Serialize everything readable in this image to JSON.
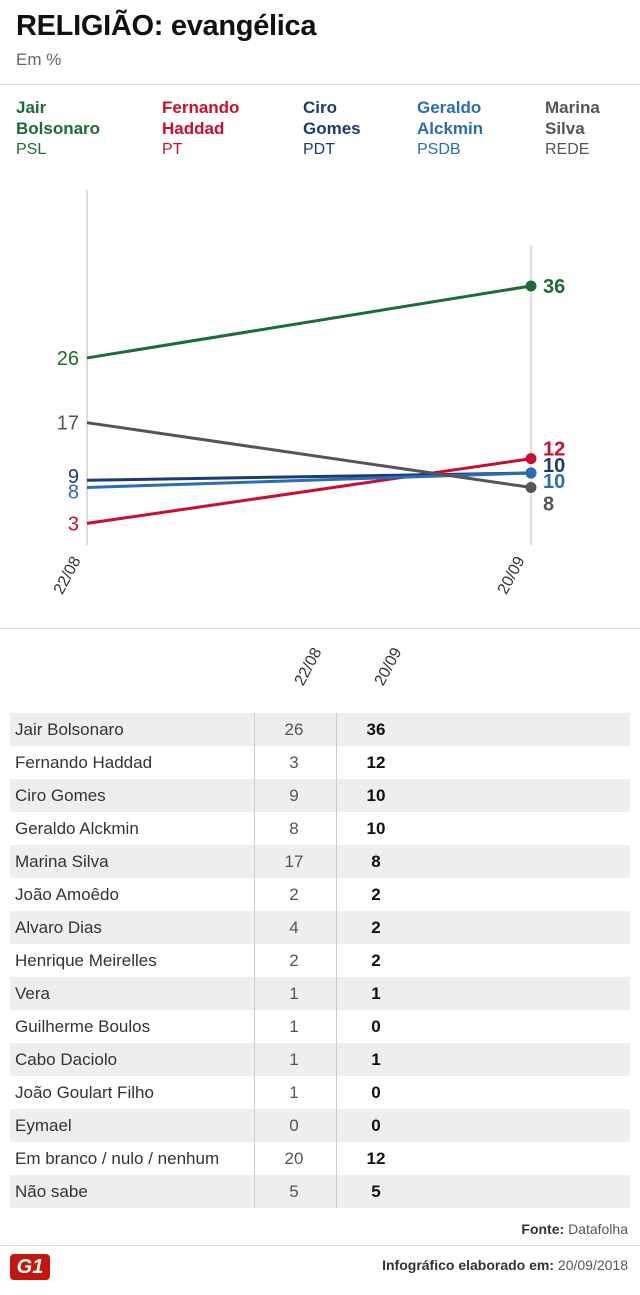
{
  "header": {
    "title": "RELIGIÃO: evangélica",
    "subtitle": "Em %"
  },
  "legend": [
    {
      "name": "Jair Bolsonaro",
      "line1": "Jair",
      "line2": "Bolsonaro",
      "party": "PSL",
      "color": "#1e6b35"
    },
    {
      "name": "Fernando Haddad",
      "line1": "Fernando",
      "line2": "Haddad",
      "party": "PT",
      "color": "#c8102e"
    },
    {
      "name": "Ciro Gomes",
      "line1": "Ciro",
      "line2": "Gomes",
      "party": "PDT",
      "color": "#1f3a6e"
    },
    {
      "name": "Geraldo Alckmin",
      "line1": "Geraldo",
      "line2": "Alckmin",
      "party": "PSDB",
      "color": "#2a6db5"
    },
    {
      "name": "Marina Silva",
      "line1": "Marina",
      "line2": "Silva",
      "party": "REDE",
      "color": "#555555"
    }
  ],
  "chart_data": {
    "type": "line",
    "categories": [
      "22/08",
      "20/09"
    ],
    "series": [
      {
        "name": "Jair Bolsonaro",
        "values": [
          26,
          36
        ],
        "color": "#1e6b35"
      },
      {
        "name": "Fernando Haddad",
        "values": [
          3,
          12
        ],
        "color": "#c8102e"
      },
      {
        "name": "Ciro Gomes",
        "values": [
          9,
          10
        ],
        "color": "#1f3a6e"
      },
      {
        "name": "Geraldo Alckmin",
        "values": [
          8,
          10
        ],
        "color": "#2a6db5"
      },
      {
        "name": "Marina Silva",
        "values": [
          17,
          8
        ],
        "color": "#555555"
      }
    ],
    "ylim": [
      0,
      40
    ]
  },
  "table": {
    "columns": [
      "22/08",
      "20/09"
    ],
    "rows": [
      {
        "name": "Jair Bolsonaro",
        "v1": "26",
        "v2": "36"
      },
      {
        "name": "Fernando Haddad",
        "v1": "3",
        "v2": "12"
      },
      {
        "name": "Ciro Gomes",
        "v1": "9",
        "v2": "10"
      },
      {
        "name": "Geraldo Alckmin",
        "v1": "8",
        "v2": "10"
      },
      {
        "name": "Marina Silva",
        "v1": "17",
        "v2": "8"
      },
      {
        "name": "João Amoêdo",
        "v1": "2",
        "v2": "2"
      },
      {
        "name": "Alvaro Dias",
        "v1": "4",
        "v2": "2"
      },
      {
        "name": "Henrique Meirelles",
        "v1": "2",
        "v2": "2"
      },
      {
        "name": "Vera",
        "v1": "1",
        "v2": "1"
      },
      {
        "name": "Guilherme Boulos",
        "v1": "1",
        "v2": "0"
      },
      {
        "name": "Cabo Daciolo",
        "v1": "1",
        "v2": "1"
      },
      {
        "name": "João Goulart Filho",
        "v1": "1",
        "v2": "0"
      },
      {
        "name": "Eymael",
        "v1": "0",
        "v2": "0"
      },
      {
        "name": "Em branco / nulo / nenhum",
        "v1": "20",
        "v2": "12"
      },
      {
        "name": "Não sabe",
        "v1": "5",
        "v2": "5"
      }
    ]
  },
  "footer": {
    "source_label": "Fonte:",
    "source": "Datafolha",
    "note_label": "Infográfico elaborado em:",
    "date": "20/09/2018",
    "logo": "G1"
  }
}
